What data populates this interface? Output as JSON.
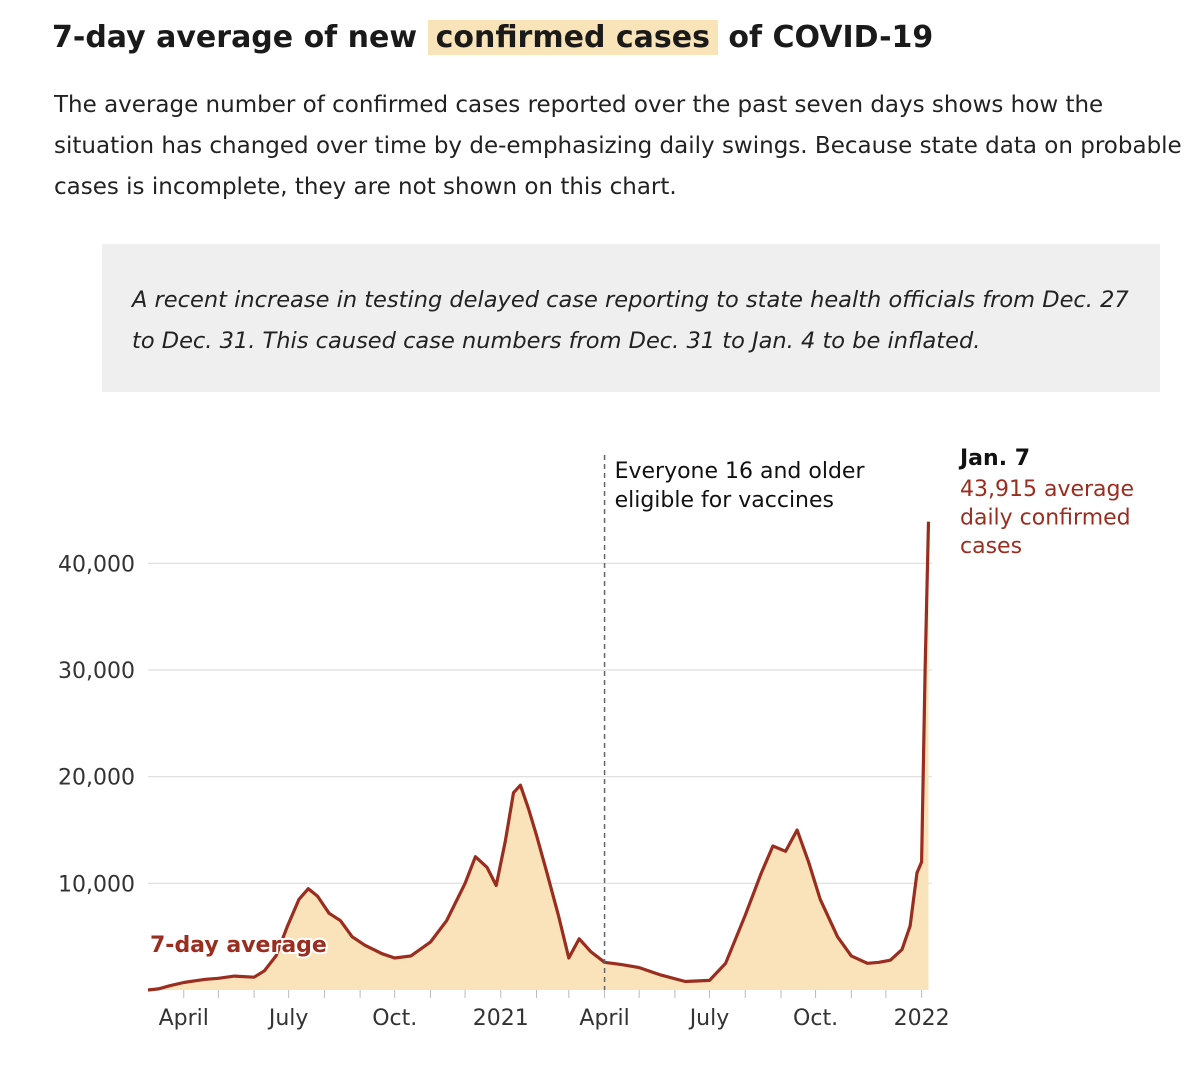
{
  "header": {
    "title_before": "7-day average of new",
    "title_highlight": "confirmed cases",
    "title_after": "of COVID-19",
    "description": "The average number of confirmed cases reported over the past seven days shows how the situation has changed over time by de-emphasizing daily swings. Because state data on probable cases is incomplete, they are not shown on this chart."
  },
  "note": {
    "text": "A recent increase in testing delayed case reporting to state health officials from Dec. 27 to Dec. 31. This caused case numbers from Dec. 31 to Jan. 4 to be inflated."
  },
  "colors": {
    "line": "#9b2d1f",
    "area": "#fae3bb",
    "highlight": "#f9e3b8",
    "note_bg": "#efefef",
    "grid": "#dddddd"
  },
  "chart_data": {
    "type": "area",
    "title": "7-day average of new confirmed cases of COVID-19",
    "series_label": "7-day average",
    "x_tick_labels": [
      "April",
      "July",
      "Oct.",
      "2021",
      "April",
      "July",
      "Oct.",
      "2022"
    ],
    "y_ticks": [
      10000,
      20000,
      30000,
      40000
    ],
    "y_tick_labels": [
      "10,000",
      "20,000",
      "30,000",
      "40,000"
    ],
    "ylim": [
      0,
      45000
    ],
    "xlim": [
      "2020-03-01",
      "2022-01-10"
    ],
    "grid": true,
    "series": [
      {
        "name": "7-day average",
        "points": [
          [
            "2020-03-01",
            0
          ],
          [
            "2020-03-10",
            100
          ],
          [
            "2020-03-20",
            400
          ],
          [
            "2020-04-01",
            700
          ],
          [
            "2020-04-10",
            850
          ],
          [
            "2020-04-20",
            1000
          ],
          [
            "2020-05-01",
            1100
          ],
          [
            "2020-05-15",
            1300
          ],
          [
            "2020-06-01",
            1200
          ],
          [
            "2020-06-10",
            1800
          ],
          [
            "2020-06-20",
            3200
          ],
          [
            "2020-06-30",
            6000
          ],
          [
            "2020-07-10",
            8500
          ],
          [
            "2020-07-18",
            9500
          ],
          [
            "2020-07-26",
            8800
          ],
          [
            "2020-08-05",
            7200
          ],
          [
            "2020-08-15",
            6500
          ],
          [
            "2020-08-25",
            5000
          ],
          [
            "2020-09-05",
            4200
          ],
          [
            "2020-09-20",
            3400
          ],
          [
            "2020-10-01",
            3000
          ],
          [
            "2020-10-15",
            3200
          ],
          [
            "2020-11-01",
            4500
          ],
          [
            "2020-11-15",
            6500
          ],
          [
            "2020-12-01",
            10000
          ],
          [
            "2020-12-10",
            12500
          ],
          [
            "2020-12-20",
            11500
          ],
          [
            "2020-12-28",
            9800
          ],
          [
            "2021-01-05",
            14000
          ],
          [
            "2021-01-12",
            18500
          ],
          [
            "2021-01-18",
            19200
          ],
          [
            "2021-01-25",
            17000
          ],
          [
            "2021-02-01",
            14500
          ],
          [
            "2021-02-10",
            11000
          ],
          [
            "2021-02-20",
            7000
          ],
          [
            "2021-03-01",
            3000
          ],
          [
            "2021-03-10",
            4800
          ],
          [
            "2021-03-20",
            3600
          ],
          [
            "2021-04-01",
            2600
          ],
          [
            "2021-04-15",
            2400
          ],
          [
            "2021-05-01",
            2100
          ],
          [
            "2021-05-20",
            1400
          ],
          [
            "2021-06-10",
            800
          ],
          [
            "2021-07-01",
            900
          ],
          [
            "2021-07-15",
            2500
          ],
          [
            "2021-08-01",
            7000
          ],
          [
            "2021-08-15",
            11000
          ],
          [
            "2021-08-25",
            13500
          ],
          [
            "2021-09-05",
            13000
          ],
          [
            "2021-09-15",
            15000
          ],
          [
            "2021-09-25",
            12000
          ],
          [
            "2021-10-05",
            8500
          ],
          [
            "2021-10-20",
            5000
          ],
          [
            "2021-11-01",
            3200
          ],
          [
            "2021-11-15",
            2500
          ],
          [
            "2021-11-25",
            2600
          ],
          [
            "2021-12-05",
            2800
          ],
          [
            "2021-12-15",
            3800
          ],
          [
            "2021-12-22",
            6000
          ],
          [
            "2021-12-28",
            11000
          ],
          [
            "2022-01-01",
            12000
          ],
          [
            "2022-01-04",
            30000
          ],
          [
            "2022-01-07",
            43915
          ]
        ]
      }
    ],
    "annotations": [
      {
        "date": "2021-04-01",
        "text_lines": [
          "Everyone 16 and older",
          "eligible for vaccines"
        ]
      },
      {
        "date": "2022-01-07",
        "label": "Jan. 7",
        "text_lines": [
          "43,915 average",
          "daily confirmed",
          "cases"
        ]
      }
    ]
  }
}
